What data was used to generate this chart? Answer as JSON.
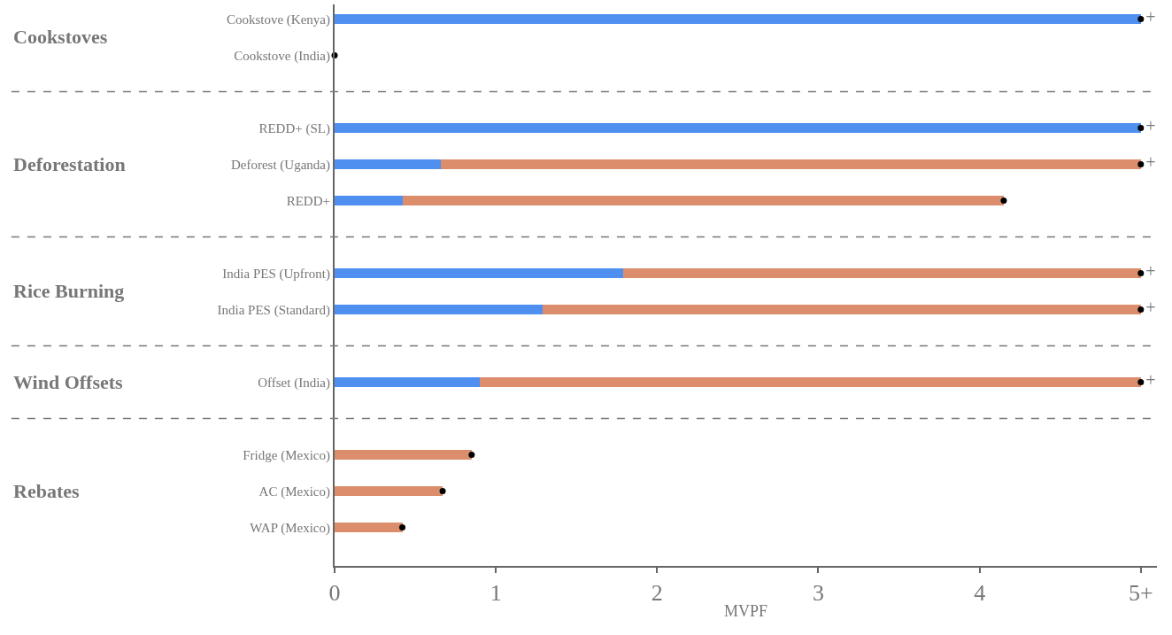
{
  "chart_data": {
    "type": "bar",
    "orientation": "horizontal",
    "stacked": true,
    "xlabel": "MVPF",
    "categories": [
      "Cookstove (Kenya)",
      "Cookstove (India)",
      null,
      "REDD+ (SL)",
      "Deforest (Uganda)",
      "REDD+",
      null,
      "India PES (Upfront)",
      "India PES (Standard)",
      null,
      "Offset (India)",
      null,
      "Fridge (Mexico)",
      "AC (Mexico)",
      "WAP (Mexico)"
    ],
    "series": [
      {
        "color": "#4f8ff0",
        "values": [
          5,
          0,
          null,
          5,
          0.66,
          0.42,
          null,
          1.79,
          1.29,
          null,
          0.9,
          null,
          null,
          null,
          null
        ]
      },
      {
        "color": "#dc8e6c",
        "values": [
          null,
          null,
          null,
          null,
          4.34,
          3.73,
          null,
          3.21,
          3.71,
          null,
          4.1,
          null,
          0.85,
          0.67,
          0.42
        ]
      },
      {
        "type": "scatter",
        "color": "#000000",
        "values": [
          5,
          0,
          null,
          5,
          5,
          4.15,
          null,
          5,
          5,
          null,
          5,
          null,
          0.85,
          0.67,
          0.42
        ],
        "value_labels": [
          "+",
          null,
          null,
          "+",
          "+",
          null,
          null,
          "+",
          "+",
          null,
          "+",
          null,
          null,
          null,
          null
        ]
      }
    ],
    "marker": "circle",
    "xlim": [
      0,
      5.1
    ],
    "xticks": [
      0,
      1,
      2,
      3,
      4,
      {
        "value": 5,
        "label": "5+"
      }
    ],
    "annotations": [
      "Cookstoves",
      "Deforestation",
      "Rice Burning",
      "Wind Offsets",
      "Rebates"
    ]
  }
}
